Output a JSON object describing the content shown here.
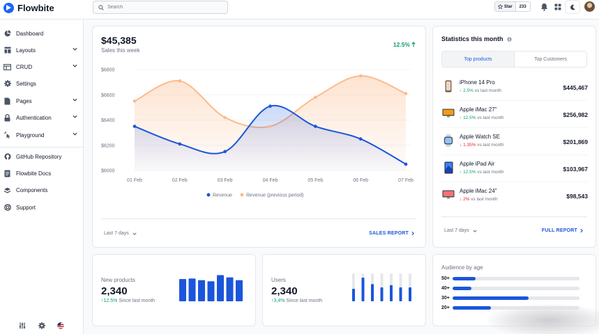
{
  "app": {
    "logo_text": "Flowbite",
    "brand_color": "#1c64f2",
    "logo_icon": "flowbite-logo-icon"
  },
  "topbar": {
    "search_placeholder": "Search",
    "star_label": "Star",
    "star_count": "233",
    "icons": [
      "search-icon",
      "star-icon",
      "bell-icon",
      "apps-grid-icon",
      "moon-icon",
      "avatar"
    ]
  },
  "sidebar": {
    "items": [
      {
        "label": "Dashboard",
        "icon": "pie-chart-icon",
        "expandable": false
      },
      {
        "label": "Layouts",
        "icon": "layout-icon",
        "expandable": true
      },
      {
        "label": "CRUD",
        "icon": "table-icon",
        "expandable": true
      },
      {
        "label": "Settings",
        "icon": "gear-icon",
        "expandable": false
      },
      {
        "label": "Pages",
        "icon": "pages-icon",
        "expandable": true
      },
      {
        "label": "Authentication",
        "icon": "lock-icon",
        "expandable": true
      },
      {
        "label": "Playground",
        "icon": "cursor-click-icon",
        "expandable": true
      }
    ],
    "secondary_items": [
      {
        "label": "GitHub Repository",
        "icon": "github-icon"
      },
      {
        "label": "Flowbite Docs",
        "icon": "document-icon"
      },
      {
        "label": "Components",
        "icon": "components-icon"
      },
      {
        "label": "Support",
        "icon": "lifebuoy-icon"
      }
    ],
    "bottom_icons": [
      "sliders-icon",
      "gear-icon",
      "us-flag-icon"
    ]
  },
  "sales": {
    "value": "$45,385",
    "subtitle": "Sales this week",
    "change": "12.5%",
    "range_label": "Last 7 days",
    "report_link": "SALES REPORT"
  },
  "chart_data": {
    "type": "area",
    "x": [
      "01 Feb",
      "02 Feb",
      "03 Feb",
      "04 Feb",
      "05 Feb",
      "06 Feb",
      "07 Feb"
    ],
    "y_ticks": [
      "$6800",
      "$6600",
      "$6400",
      "$6200",
      "$6000"
    ],
    "ylim": [
      6000,
      6800
    ],
    "grid": true,
    "legend_position": "bottom",
    "series": [
      {
        "name": "Revenue",
        "color": "#1a56db",
        "values": [
          6350,
          6210,
          6150,
          6510,
          6350,
          6250,
          6050
        ]
      },
      {
        "name": "Revenue (previous period)",
        "color": "#fdba8c",
        "values": [
          6550,
          6710,
          6420,
          6350,
          6580,
          6750,
          6610
        ]
      }
    ]
  },
  "stats": {
    "title": "Statistics this month",
    "tabs": [
      "Top products",
      "Top Customers"
    ],
    "products": [
      {
        "name": "iPhone 14 Pro",
        "change": "2.5%",
        "direction": "up",
        "suffix": "vs last month",
        "price": "$445,467",
        "icon": "iphone-icon"
      },
      {
        "name": "Apple iMac 27\"",
        "change": "12.5%",
        "direction": "up",
        "suffix": "vs last month",
        "price": "$256,982",
        "icon": "imac-icon"
      },
      {
        "name": "Apple Watch SE",
        "change": "1.35%",
        "direction": "down",
        "suffix": "vs last month",
        "price": "$201,869",
        "icon": "watch-icon"
      },
      {
        "name": "Apple iPad Air",
        "change": "12.5%",
        "direction": "up",
        "suffix": "vs last month",
        "price": "$103,967",
        "icon": "ipad-icon"
      },
      {
        "name": "Apple iMac 24\"",
        "change": "2%",
        "direction": "down",
        "suffix": "vs last month",
        "price": "$98,543",
        "icon": "imac-icon"
      }
    ],
    "range_label": "Last 7 days",
    "report_link": "FULL REPORT"
  },
  "new_products": {
    "title": "New products",
    "value": "2,340",
    "change": "12.5%",
    "suffix": "Since last month",
    "bars": [
      0.8,
      0.82,
      0.76,
      0.72,
      0.94,
      0.86,
      0.76
    ]
  },
  "users": {
    "title": "Users",
    "value": "2,340",
    "change": "3,4%",
    "suffix": "Since last month",
    "bars": [
      0.45,
      0.85,
      0.62,
      0.5,
      0.58,
      0.5,
      0.5
    ]
  },
  "audience": {
    "title": "Audience by age",
    "rows": [
      {
        "label": "50+",
        "value": 0.18
      },
      {
        "label": "40+",
        "value": 0.15
      },
      {
        "label": "30+",
        "value": 0.6
      },
      {
        "label": "20+",
        "value": 0.3
      }
    ]
  }
}
